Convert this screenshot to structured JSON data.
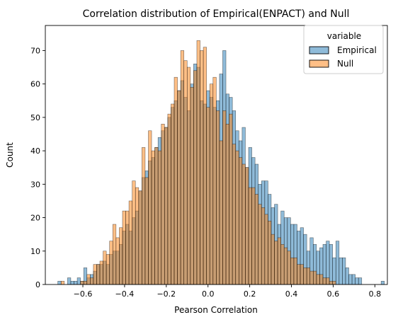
{
  "chart_data": {
    "type": "bar",
    "title": "Correlation distribution of Empirical(ENPACT) and Null",
    "xlabel": "Pearson Correlation",
    "ylabel": "Count",
    "xlim": [
      -0.78,
      0.86
    ],
    "ylim": [
      0,
      77.5
    ],
    "xticks": [
      -0.6,
      -0.4,
      -0.2,
      0.0,
      0.2,
      0.4,
      0.6,
      0.8
    ],
    "xtick_labels": [
      "−0.6",
      "−0.4",
      "−0.2",
      "0.0",
      "0.2",
      "0.4",
      "0.6",
      "0.8"
    ],
    "yticks": [
      0,
      10,
      20,
      30,
      40,
      50,
      60,
      70
    ],
    "ytick_labels": [
      "0",
      "10",
      "20",
      "30",
      "40",
      "50",
      "60",
      "70"
    ],
    "bin_start": -0.72,
    "bin_width": 0.0155,
    "grid": false,
    "legend": {
      "title": "variable",
      "placement": "top-right"
    },
    "series": [
      {
        "name": "Empirical",
        "color": "#1f77b4",
        "values": [
          1,
          0,
          0,
          2,
          1,
          1,
          2,
          1,
          5,
          2,
          3,
          4,
          6,
          6,
          7,
          6,
          9,
          10,
          10,
          12,
          16,
          18,
          16,
          20,
          22,
          28,
          32,
          34,
          37,
          38,
          41,
          44,
          46,
          47,
          50,
          53,
          55,
          58,
          61,
          56,
          52,
          60,
          66,
          65,
          55,
          54,
          58,
          56,
          53,
          55,
          63,
          70,
          57,
          56,
          52,
          46,
          43,
          47,
          35,
          41,
          38,
          36,
          30,
          31,
          31,
          27,
          23,
          24,
          18,
          22,
          20,
          20,
          18,
          18,
          16,
          17,
          15,
          10,
          14,
          12,
          10,
          11,
          12,
          13,
          12,
          8,
          13,
          8,
          8,
          5,
          3,
          3,
          2,
          2,
          0,
          0,
          0,
          0,
          0,
          0,
          1
        ]
      },
      {
        "name": "Null",
        "color": "#ff7f0e",
        "values": [
          0,
          1,
          0,
          0,
          0,
          0,
          0,
          1,
          1,
          3,
          2,
          6,
          6,
          7,
          10,
          9,
          13,
          18,
          14,
          17,
          22,
          22,
          25,
          31,
          29,
          28,
          41,
          32,
          46,
          40,
          41,
          40,
          48,
          47,
          51,
          54,
          62,
          58,
          70,
          67,
          65,
          59,
          64,
          73,
          70,
          71,
          53,
          60,
          62,
          52,
          43,
          52,
          48,
          51,
          42,
          40,
          38,
          36,
          35,
          29,
          29,
          27,
          24,
          23,
          21,
          19,
          15,
          13,
          14,
          12,
          11,
          10,
          8,
          8,
          6,
          6,
          5,
          5,
          4,
          4,
          3,
          3,
          2,
          2,
          1,
          1,
          0,
          0,
          0,
          0,
          0,
          0,
          0,
          0,
          0,
          0,
          0,
          0,
          0,
          0,
          0
        ]
      }
    ]
  }
}
